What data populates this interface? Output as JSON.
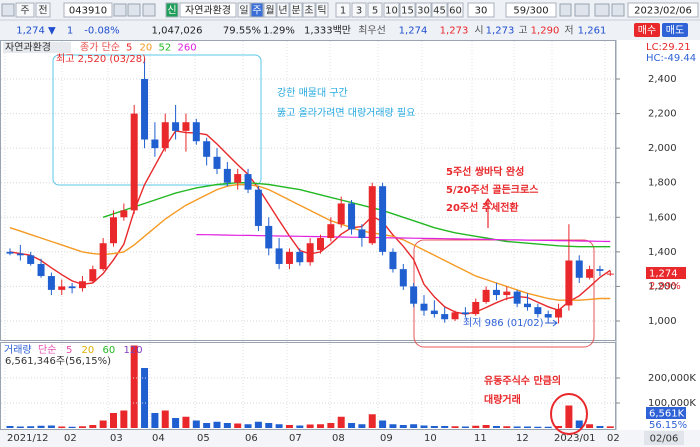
{
  "toolbar": {
    "row1": [
      "주",
      "전",
      "043910",
      "신",
      "자연과환경",
      "일",
      "주",
      "월",
      "년",
      "분",
      "초",
      "틱",
      "1",
      "3",
      "5",
      "10",
      "15",
      "30",
      "45",
      "60",
      "30",
      "59/300",
      "2023/02/06"
    ],
    "row2": [
      "1,274 ▼",
      "1",
      "-0.08%",
      "1,047,026",
      "79.55%",
      "1.29%",
      "1,333백만",
      "최우선",
      "1,274",
      "1,273",
      "시",
      "1,273",
      "고",
      "1,290",
      "저",
      "1,261",
      "매수",
      "매도"
    ]
  },
  "chart_data": {
    "type": "candlestick",
    "title": "자연과환경",
    "legend_title": "종가 단순",
    "up_color": "#e8282b",
    "down_color": "#1f5fcf",
    "grid": true,
    "ylim": [
      890,
      2620
    ],
    "yticks": [
      {
        "value": 1000,
        "label": "1,000"
      },
      {
        "value": 1200,
        "label": "1,200"
      },
      {
        "value": 1400,
        "label": "1,400"
      },
      {
        "value": 1600,
        "label": "1,600"
      },
      {
        "value": 1800,
        "label": "1,800"
      },
      {
        "value": 2000,
        "label": "2,000"
      },
      {
        "value": 2200,
        "label": "2,200"
      },
      {
        "value": 2400,
        "label": "2,400"
      }
    ],
    "candles": [
      [
        1400,
        1420,
        1380,
        1390
      ],
      [
        1390,
        1440,
        1350,
        1380
      ],
      [
        1380,
        1400,
        1320,
        1330
      ],
      [
        1330,
        1360,
        1250,
        1260
      ],
      [
        1260,
        1280,
        1150,
        1180
      ],
      [
        1180,
        1240,
        1150,
        1200
      ],
      [
        1200,
        1220,
        1160,
        1190
      ],
      [
        1190,
        1260,
        1170,
        1230
      ],
      [
        1230,
        1320,
        1220,
        1300
      ],
      [
        1300,
        1480,
        1290,
        1450
      ],
      [
        1450,
        1640,
        1430,
        1600
      ],
      [
        1600,
        1680,
        1580,
        1640
      ],
      [
        1640,
        2250,
        1620,
        2200
      ],
      [
        2400,
        2520,
        2000,
        2050
      ],
      [
        2050,
        2150,
        1950,
        2000
      ],
      [
        2000,
        2200,
        1980,
        2150
      ],
      [
        2150,
        2250,
        2050,
        2100
      ],
      [
        2100,
        2200,
        1980,
        2150
      ],
      [
        2150,
        2170,
        2020,
        2040
      ],
      [
        2040,
        2060,
        1900,
        1950
      ],
      [
        1950,
        2000,
        1850,
        1880
      ],
      [
        1880,
        1920,
        1780,
        1800
      ],
      [
        1800,
        1880,
        1760,
        1850
      ],
      [
        1850,
        1880,
        1740,
        1760
      ],
      [
        1760,
        1780,
        1520,
        1550
      ],
      [
        1550,
        1600,
        1380,
        1420
      ],
      [
        1420,
        1480,
        1300,
        1330
      ],
      [
        1330,
        1420,
        1300,
        1400
      ],
      [
        1400,
        1420,
        1320,
        1340
      ],
      [
        1340,
        1480,
        1320,
        1450
      ],
      [
        1410,
        1500,
        1390,
        1480
      ],
      [
        1480,
        1600,
        1460,
        1560
      ],
      [
        1560,
        1720,
        1540,
        1680
      ],
      [
        1680,
        1700,
        1500,
        1530
      ],
      [
        1530,
        1560,
        1430,
        1480
      ],
      [
        1450,
        1800,
        1440,
        1780
      ],
      [
        1780,
        1800,
        1380,
        1400
      ],
      [
        1400,
        1420,
        1280,
        1300
      ],
      [
        1300,
        1330,
        1180,
        1200
      ],
      [
        1200,
        1220,
        1080,
        1100
      ],
      [
        1100,
        1150,
        1030,
        1060
      ],
      [
        1060,
        1120,
        1020,
        1040
      ],
      [
        1040,
        1080,
        990,
        1010
      ],
      [
        1010,
        1060,
        1000,
        1050
      ],
      [
        1050,
        1080,
        1020,
        1040
      ],
      [
        1040,
        1130,
        1030,
        1110
      ],
      [
        1110,
        1200,
        1100,
        1180
      ],
      [
        1180,
        1220,
        1120,
        1150
      ],
      [
        1150,
        1200,
        1120,
        1170
      ],
      [
        1170,
        1180,
        1080,
        1100
      ],
      [
        1100,
        1160,
        1060,
        1080
      ],
      [
        1080,
        1100,
        1020,
        1040
      ],
      [
        1040,
        1060,
        990,
        1020
      ],
      [
        1020,
        1100,
        986,
        1070
      ],
      [
        1090,
        1560,
        1060,
        1350
      ],
      [
        1350,
        1380,
        1220,
        1250
      ],
      [
        1250,
        1320,
        1240,
        1300
      ],
      [
        1300,
        1320,
        1260,
        1290
      ],
      [
        1273,
        1290,
        1261,
        1274
      ]
    ],
    "moving_averages": [
      {
        "name": "5",
        "color": "#e8282b",
        "values": [
          1400,
          1390,
          1380,
          1350,
          1308,
          1268,
          1232,
          1212,
          1220,
          1274,
          1354,
          1444,
          1638,
          1788,
          1898,
          2008,
          2100,
          2090,
          2088,
          2078,
          2024,
          1964,
          1904,
          1848,
          1768,
          1676,
          1582,
          1492,
          1408,
          1388,
          1400,
          1446,
          1502,
          1540,
          1546,
          1606,
          1574,
          1498,
          1432,
          1356,
          1212,
          1140,
          1082,
          1052,
          1040,
          1052,
          1078,
          1106,
          1130,
          1142,
          1136,
          1108,
          1082,
          1062,
          1112,
          1146,
          1198,
          1252,
          1293
        ]
      },
      {
        "name": "20",
        "color": "#f59a23",
        "values": [
          1540,
          1520,
          1500,
          1480,
          1460,
          1440,
          1420,
          1400,
          1390,
          1385,
          1390,
          1400,
          1440,
          1490,
          1540,
          1590,
          1630,
          1670,
          1700,
          1730,
          1760,
          1780,
          1790,
          1790,
          1780,
          1760,
          1730,
          1700,
          1670,
          1640,
          1610,
          1580,
          1560,
          1540,
          1520,
          1510,
          1500,
          1490,
          1470,
          1440,
          1410,
          1380,
          1350,
          1320,
          1290,
          1260,
          1240,
          1220,
          1200,
          1180,
          1160,
          1145,
          1130,
          1120,
          1120,
          1120,
          1125,
          1130,
          1130
        ]
      },
      {
        "name": "52",
        "color": "#22b822",
        "values": [
          null,
          null,
          null,
          null,
          null,
          null,
          null,
          null,
          null,
          1600,
          1620,
          1640,
          1660,
          1680,
          1700,
          1720,
          1740,
          1755,
          1770,
          1780,
          1790,
          1795,
          1800,
          1800,
          1795,
          1790,
          1780,
          1770,
          1760,
          1745,
          1730,
          1715,
          1700,
          1685,
          1670,
          1655,
          1640,
          1620,
          1600,
          1580,
          1560,
          1540,
          1525,
          1510,
          1500,
          1490,
          1480,
          1470,
          1460,
          1455,
          1450,
          1445,
          1440,
          1435,
          1432,
          1430,
          1430,
          1430,
          1430
        ]
      },
      {
        "name": "260",
        "color": "#e020e0",
        "values": [
          null,
          null,
          null,
          null,
          null,
          null,
          null,
          null,
          null,
          null,
          null,
          null,
          null,
          null,
          null,
          null,
          null,
          null,
          1500,
          1499,
          1498,
          1497,
          1496,
          1495,
          1494,
          1493,
          1492,
          1491,
          1490,
          1489,
          1488,
          1487,
          1486,
          1485,
          1484,
          1483,
          1482,
          1481,
          1480,
          1479,
          1478,
          1477,
          1476,
          1475,
          1474,
          1473,
          1472,
          1471,
          1470,
          1469,
          1468,
          1467,
          1466,
          1465,
          1464,
          1463,
          1462,
          1461,
          1460
        ]
      }
    ],
    "x_labels": [
      "2021/12",
      "02",
      "03",
      "04",
      "05",
      "06",
      "07",
      "08",
      "09",
      "10",
      "11",
      "12",
      "2023/01",
      "02"
    ],
    "last_date": "02/06",
    "price_label": "1,274",
    "change_label": "2.99%",
    "lc": "LC:29.21",
    "hc": "HC:-49.44",
    "high_note": "최고 2,520 (03/28)",
    "low_note": "최저 986 (01/02)",
    "annotations": {
      "resistance": [
        "강한 매물대 구간",
        "뚫고 올라가려면 대량거래량 필요"
      ],
      "bottom": [
        "5주선 쌍바닥 완성",
        "5/20주선 골든크로스",
        "20주선 추세전환"
      ],
      "volume": [
        "유동주식수 만큼의",
        "대량거래"
      ]
    },
    "volume": {
      "title": "거래량",
      "legend_title": "단순",
      "ma_names": [
        {
          "name": "5",
          "color": "#e84fb0"
        },
        {
          "name": "20",
          "color": "#e0b000"
        },
        {
          "name": "60",
          "color": "#22b822"
        },
        {
          "name": "120",
          "color": "#8040c0"
        }
      ],
      "summary": "6,561,346주(56,15%)",
      "ylim": [
        0,
        340000
      ],
      "yticks": [
        {
          "value": 100000,
          "label": "100,000K"
        },
        {
          "value": 200000,
          "label": "200,000K"
        }
      ],
      "values": [
        8000,
        6000,
        7000,
        9000,
        10000,
        6000,
        5000,
        7000,
        12000,
        30000,
        60000,
        70000,
        330000,
        240000,
        60000,
        70000,
        40000,
        45000,
        30000,
        20000,
        25000,
        20000,
        18000,
        15000,
        25000,
        20000,
        15000,
        12000,
        10000,
        14000,
        15000,
        20000,
        45000,
        20000,
        15000,
        55000,
        30000,
        15000,
        12000,
        15000,
        10000,
        8000,
        8000,
        7000,
        6000,
        9000,
        12000,
        8000,
        7000,
        6000,
        6000,
        5000,
        5000,
        8000,
        90000,
        30000,
        15000,
        8000,
        6561
      ],
      "last_label": "6,561K",
      "ratio_label": "56.15%"
    }
  }
}
